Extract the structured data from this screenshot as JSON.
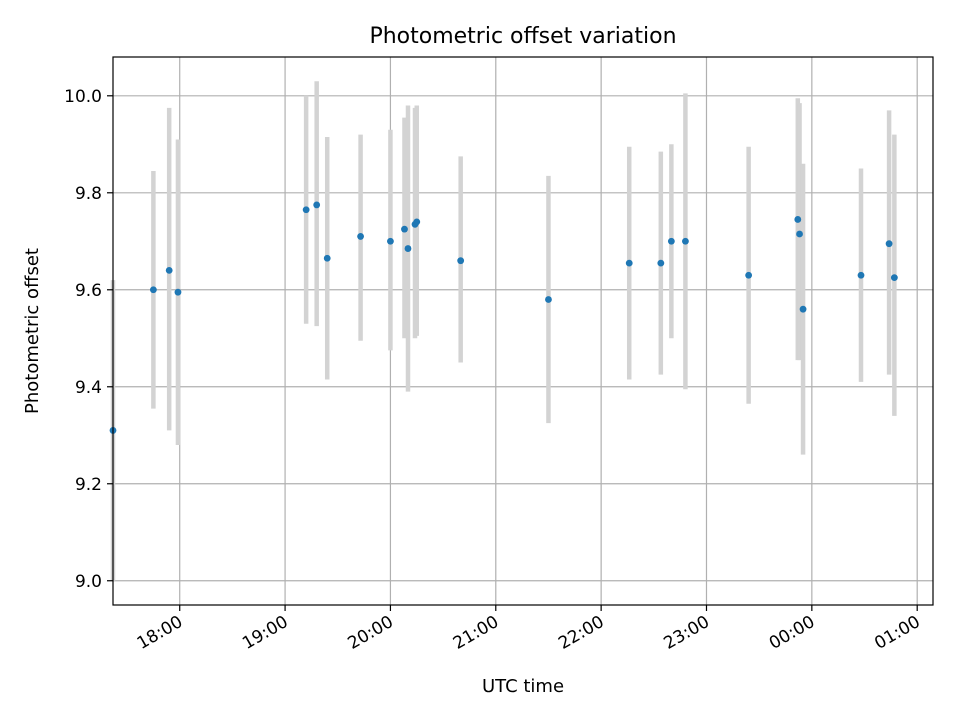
{
  "chart_data": {
    "type": "scatter",
    "title": "Photometric offset variation",
    "xlabel": "UTC time",
    "ylabel": "Photometric offset",
    "x_tick_labels": [
      "18:00",
      "19:00",
      "20:00",
      "21:00",
      "22:00",
      "23:00",
      "00:00",
      "01:00"
    ],
    "y_tick_labels": [
      "9.0",
      "9.2",
      "9.4",
      "9.6",
      "9.8",
      "10.0"
    ],
    "xlim": [
      "17:22",
      "01:09"
    ],
    "ylim": [
      8.95,
      10.08
    ],
    "grid": true,
    "point_color": "#1f77b4",
    "errorbar_color": "#d3d3d3",
    "series": [
      {
        "points": [
          {
            "x": "17:22",
            "y": 9.31,
            "ylow": 9.0,
            "yhigh": 9.62
          },
          {
            "x": "17:45",
            "y": 9.6,
            "ylow": 9.355,
            "yhigh": 9.845
          },
          {
            "x": "17:54",
            "y": 9.64,
            "ylow": 9.31,
            "yhigh": 9.975
          },
          {
            "x": "17:59",
            "y": 9.595,
            "ylow": 9.28,
            "yhigh": 9.91
          },
          {
            "x": "19:12",
            "y": 9.765,
            "ylow": 9.53,
            "yhigh": 10.0
          },
          {
            "x": "19:18",
            "y": 9.775,
            "ylow": 9.525,
            "yhigh": 10.03
          },
          {
            "x": "19:24",
            "y": 9.665,
            "ylow": 9.415,
            "yhigh": 9.915
          },
          {
            "x": "19:43",
            "y": 9.71,
            "ylow": 9.495,
            "yhigh": 9.92
          },
          {
            "x": "20:00",
            "y": 9.7,
            "ylow": 9.475,
            "yhigh": 9.93
          },
          {
            "x": "20:08",
            "y": 9.725,
            "ylow": 9.5,
            "yhigh": 9.955
          },
          {
            "x": "20:10",
            "y": 9.685,
            "ylow": 9.39,
            "yhigh": 9.98
          },
          {
            "x": "20:14",
            "y": 9.735,
            "ylow": 9.5,
            "yhigh": 9.975
          },
          {
            "x": "20:15",
            "y": 9.74,
            "ylow": 9.505,
            "yhigh": 9.98
          },
          {
            "x": "20:40",
            "y": 9.66,
            "ylow": 9.45,
            "yhigh": 9.875
          },
          {
            "x": "21:30",
            "y": 9.58,
            "ylow": 9.325,
            "yhigh": 9.835
          },
          {
            "x": "22:16",
            "y": 9.655,
            "ylow": 9.415,
            "yhigh": 9.895
          },
          {
            "x": "22:34",
            "y": 9.655,
            "ylow": 9.425,
            "yhigh": 9.885
          },
          {
            "x": "22:40",
            "y": 9.7,
            "ylow": 9.5,
            "yhigh": 9.9
          },
          {
            "x": "22:48",
            "y": 9.7,
            "ylow": 9.395,
            "yhigh": 10.005
          },
          {
            "x": "23:24",
            "y": 9.63,
            "ylow": 9.365,
            "yhigh": 9.895
          },
          {
            "x": "23:52",
            "y": 9.745,
            "ylow": 9.455,
            "yhigh": 9.995
          },
          {
            "x": "23:53",
            "y": 9.715,
            "ylow": 9.455,
            "yhigh": 9.985
          },
          {
            "x": "23:55",
            "y": 9.56,
            "ylow": 9.26,
            "yhigh": 9.86
          },
          {
            "x": "00:28",
            "y": 9.63,
            "ylow": 9.41,
            "yhigh": 9.85
          },
          {
            "x": "00:44",
            "y": 9.695,
            "ylow": 9.425,
            "yhigh": 9.97
          },
          {
            "x": "00:47",
            "y": 9.625,
            "ylow": 9.34,
            "yhigh": 9.92
          }
        ]
      }
    ]
  }
}
